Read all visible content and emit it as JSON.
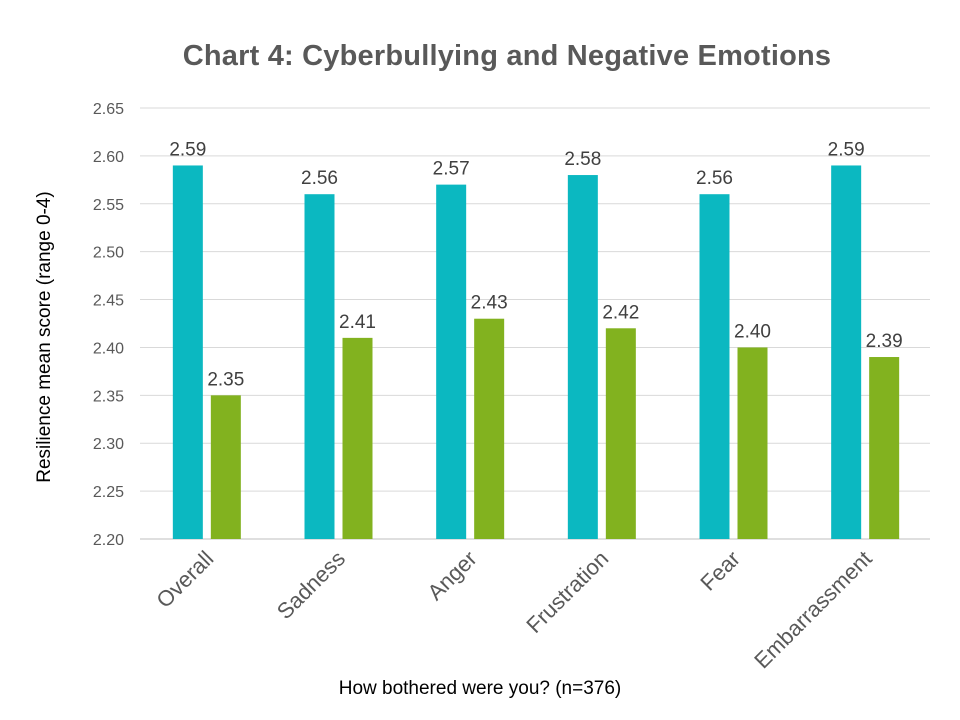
{
  "chart_data": {
    "type": "bar",
    "title": "Chart 4: Cyberbullying and Negative Emotions",
    "xlabel": "How bothered were you? (n=376)",
    "ylabel": "Resilience mean score (range 0-4)",
    "categories": [
      "Overall",
      "Sadness",
      "Anger",
      "Frustration",
      "Fear",
      "Embarrassment"
    ],
    "series": [
      {
        "values": [
          2.59,
          2.56,
          2.57,
          2.58,
          2.56,
          2.59
        ],
        "color": "#0bb8c1"
      },
      {
        "values": [
          2.35,
          2.41,
          2.43,
          2.42,
          2.4,
          2.39
        ],
        "color": "#82b21f"
      }
    ],
    "ylim": [
      2.2,
      2.65
    ],
    "yticks": [
      "2.20",
      "2.25",
      "2.30",
      "2.35",
      "2.40",
      "2.45",
      "2.50",
      "2.55",
      "2.60",
      "2.65"
    ],
    "data_labels": [
      [
        "2.59",
        "2.56",
        "2.57",
        "2.58",
        "2.56",
        "2.59"
      ],
      [
        "2.35",
        "2.41",
        "2.43",
        "2.42",
        "2.40",
        "2.39"
      ]
    ],
    "grid": true,
    "legend": false
  }
}
